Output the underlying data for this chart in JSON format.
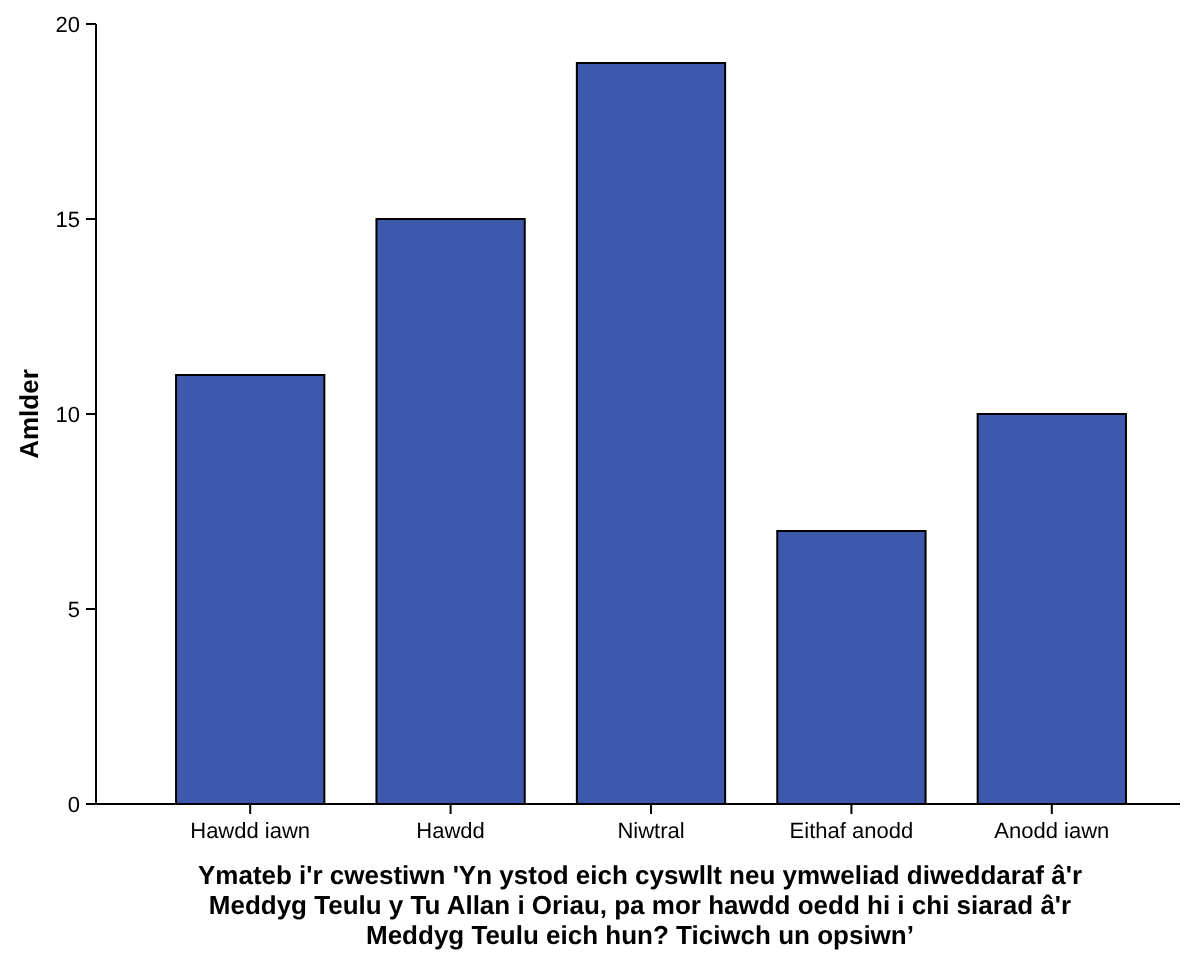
{
  "chart_data": {
    "type": "bar",
    "ylabel": "Amlder",
    "xlabel": "Ymateb i'r cwestiwn 'Yn ystod eich cyswllt neu ymweliad diweddaraf â'r Meddyg Teulu y Tu Allan i Oriau, pa mor hawdd oedd hi i chi siarad â'r Meddyg Teulu eich hun? Ticiwch un opsiwn’",
    "categories": [
      "Hawdd iawn",
      "Hawdd",
      "Niwtral",
      "Eithaf anodd",
      "Anodd iawn"
    ],
    "values": [
      11,
      15,
      19,
      7,
      10
    ],
    "color": "#3e58ac",
    "ylim": [
      0,
      20
    ],
    "yticks": [
      0,
      5,
      10,
      15,
      20
    ],
    "grid": false
  }
}
